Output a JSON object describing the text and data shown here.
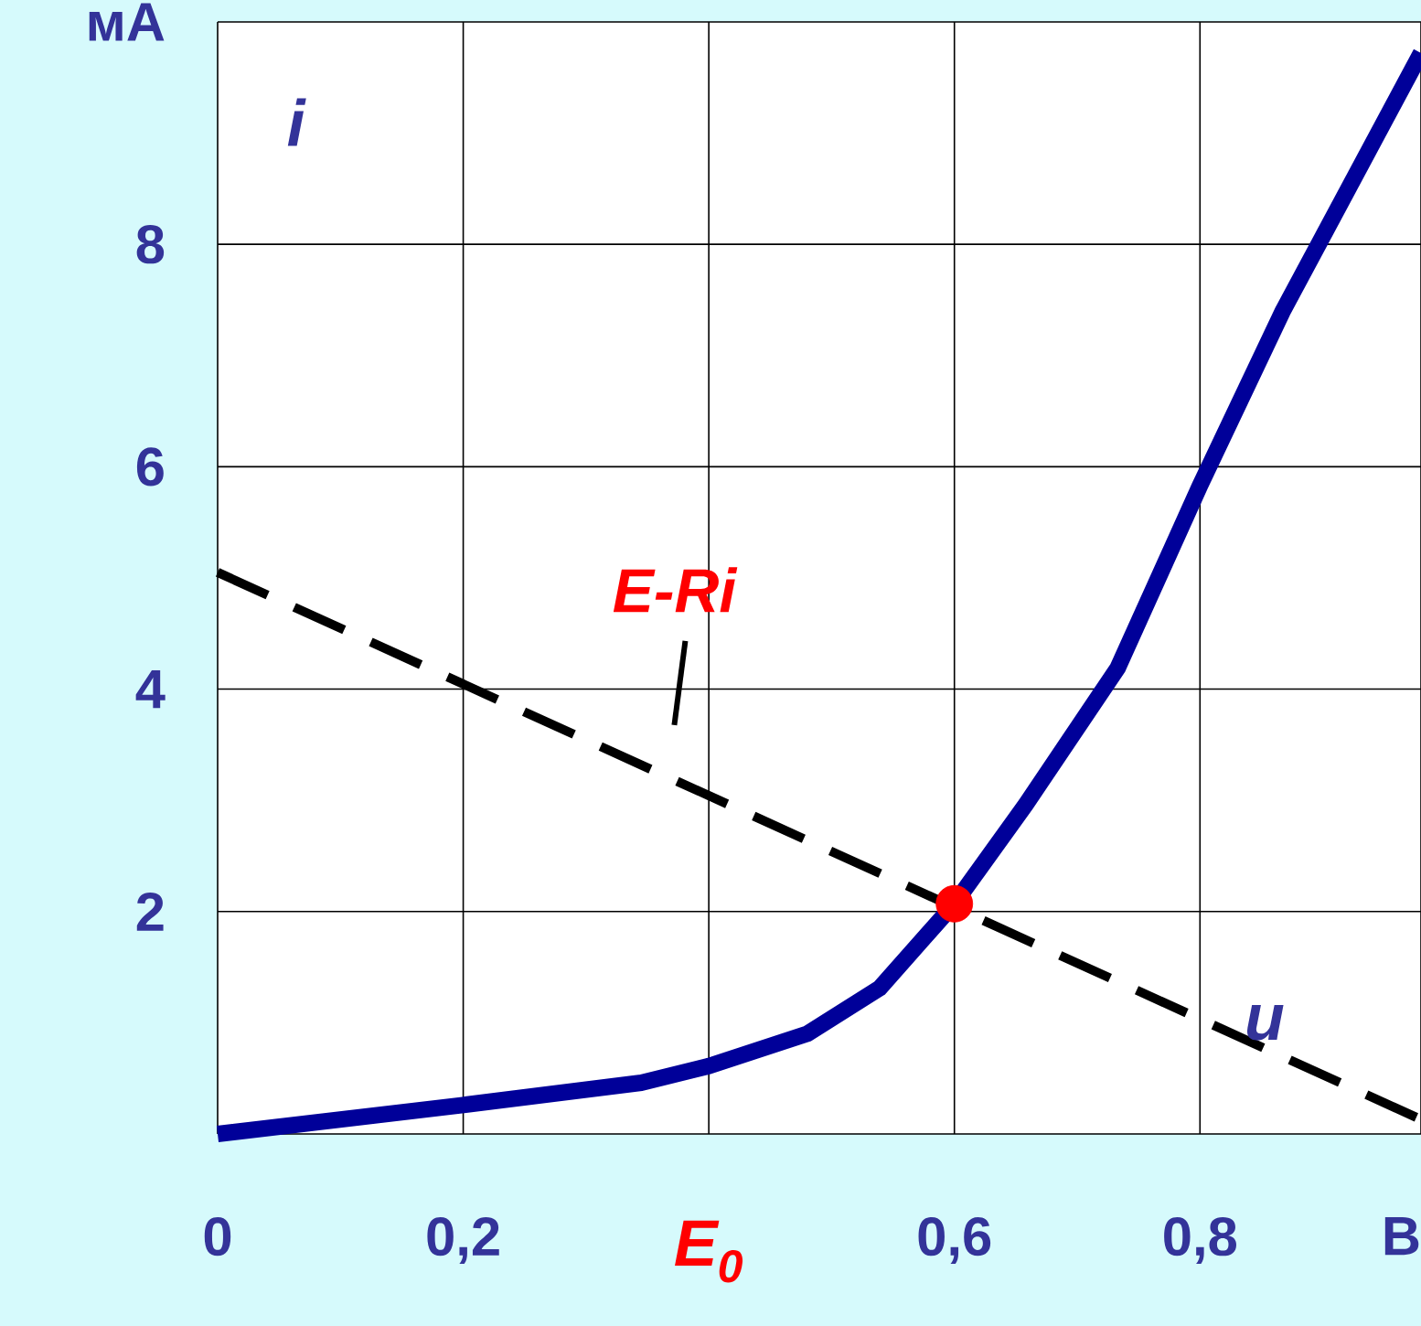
{
  "chart_data": {
    "type": "line",
    "xlabel": "u",
    "ylabel": "i",
    "xlim": [
      0,
      0.98
    ],
    "ylim": [
      0,
      10
    ],
    "xticks": [
      0,
      {
        "value": 0.2,
        "label": "0,2"
      },
      {
        "value": 0.4,
        "label": null
      },
      {
        "value": 0.6,
        "label": "0,6"
      },
      {
        "value": 0.8,
        "label": "0,8"
      },
      {
        "value": 0.98,
        "label": "В"
      }
    ],
    "yticks": [
      {
        "value": 0,
        "label": null
      },
      2,
      4,
      6,
      8,
      {
        "value": 10,
        "label": "мА"
      }
    ],
    "grid": true,
    "series": [
      {
        "color": "#000099",
        "line_style": "solid",
        "marker": "none",
        "x": [
          0,
          0.2,
          0.345,
          0.4,
          0.48,
          0.539,
          0.6,
          0.658,
          0.733,
          0.8,
          0.867,
          0.98
        ],
        "values": [
          0,
          0.26,
          0.46,
          0.61,
          0.9,
          1.31,
          2.07,
          2.96,
          4.19,
          5.83,
          7.39,
          9.72
        ]
      },
      {
        "color": "#000000",
        "line_style": "dashed",
        "marker": "none",
        "x": [
          0,
          0.98
        ],
        "values": [
          5.05,
          0.13
        ]
      },
      {
        "type": "scatter",
        "color": "#ff0000",
        "marker": "circle",
        "x": [
          0.6
        ],
        "values": [
          2.07
        ]
      }
    ],
    "annotations": [
      {
        "text": "E-Ri",
        "x": 0.36,
        "y": 3.25
      },
      "E$_{0}$"
    ]
  }
}
